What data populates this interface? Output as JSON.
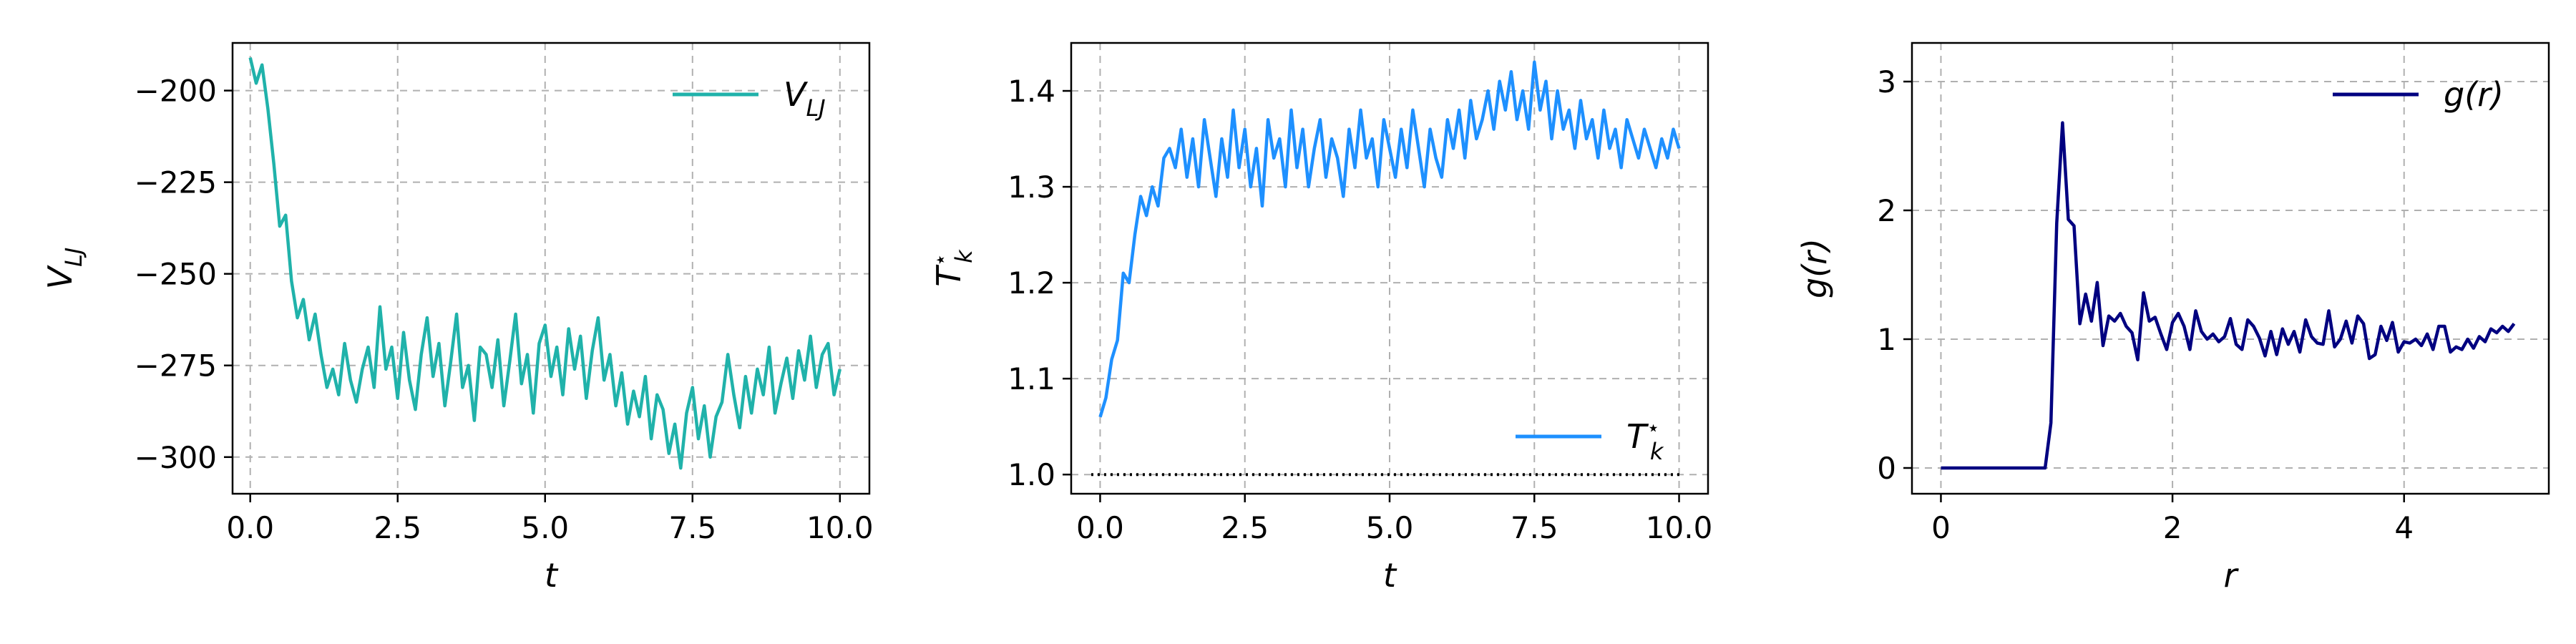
{
  "chart_data": [
    {
      "id": "vlj",
      "type": "line",
      "xlabel": "t",
      "ylabel": "V",
      "ylabel_sub": "LJ",
      "xlim": [
        -0.3,
        10.5
      ],
      "ylim": [
        -310,
        -187
      ],
      "xticks": [
        0,
        2.5,
        5,
        7.5,
        10
      ],
      "xtick_labels": [
        "0.0",
        "2.5",
        "5.0",
        "7.5",
        "10.0"
      ],
      "yticks": [
        -200,
        -225,
        -250,
        -275,
        -300
      ],
      "ytick_labels": [
        "−200",
        "−225",
        "−250",
        "−275",
        "−300"
      ],
      "grid": true,
      "legend": "upper right",
      "series": [
        {
          "name": "V",
          "name_sub": "LJ",
          "color": "#20b2aa",
          "x": [
            0,
            0.1,
            0.2,
            0.3,
            0.4,
            0.5,
            0.6,
            0.7,
            0.8,
            0.9,
            1.0,
            1.1,
            1.2,
            1.3,
            1.4,
            1.5,
            1.6,
            1.7,
            1.8,
            1.9,
            2.0,
            2.1,
            2.2,
            2.3,
            2.4,
            2.5,
            2.6,
            2.7,
            2.8,
            2.9,
            3.0,
            3.1,
            3.2,
            3.3,
            3.4,
            3.5,
            3.6,
            3.7,
            3.8,
            3.9,
            4.0,
            4.1,
            4.2,
            4.3,
            4.4,
            4.5,
            4.6,
            4.7,
            4.8,
            4.9,
            5.0,
            5.1,
            5.2,
            5.3,
            5.4,
            5.5,
            5.6,
            5.7,
            5.8,
            5.9,
            6.0,
            6.1,
            6.2,
            6.3,
            6.4,
            6.5,
            6.6,
            6.7,
            6.8,
            6.9,
            7.0,
            7.1,
            7.2,
            7.3,
            7.4,
            7.5,
            7.6,
            7.7,
            7.8,
            7.9,
            8.0,
            8.1,
            8.2,
            8.3,
            8.4,
            8.5,
            8.6,
            8.7,
            8.8,
            8.9,
            9.0,
            9.1,
            9.2,
            9.3,
            9.4,
            9.5,
            9.6,
            9.7,
            9.8,
            9.9,
            10.0
          ],
          "y": [
            -191,
            -198,
            -193,
            -205,
            -220,
            -237,
            -234,
            -252,
            -262,
            -257,
            -268,
            -261,
            -272,
            -281,
            -276,
            -283,
            -269,
            -279,
            -285,
            -276,
            -270,
            -281,
            -259,
            -276,
            -270,
            -284,
            -266,
            -279,
            -287,
            -272,
            -262,
            -278,
            -269,
            -286,
            -274,
            -261,
            -281,
            -275,
            -290,
            -270,
            -272,
            -281,
            -268,
            -286,
            -274,
            -261,
            -280,
            -272,
            -288,
            -269,
            -264,
            -278,
            -270,
            -283,
            -265,
            -276,
            -267,
            -284,
            -271,
            -262,
            -279,
            -272,
            -286,
            -277,
            -291,
            -282,
            -289,
            -278,
            -295,
            -283,
            -287,
            -299,
            -291,
            -303,
            -288,
            -281,
            -295,
            -286,
            -300,
            -289,
            -285,
            -272,
            -283,
            -292,
            -278,
            -288,
            -276,
            -283,
            -270,
            -288,
            -280,
            -273,
            -284,
            -271,
            -279,
            -267,
            -281,
            -272,
            -269,
            -283,
            -276
          ]
        }
      ]
    },
    {
      "id": "tk",
      "type": "line",
      "xlabel": "t",
      "ylabel": "T",
      "ylabel_sub": "k",
      "ylabel_sup": "⋆",
      "xlim": [
        -0.5,
        10.5
      ],
      "ylim": [
        0.98,
        1.45
      ],
      "xticks": [
        0,
        2.5,
        5,
        7.5,
        10
      ],
      "xtick_labels": [
        "0.0",
        "2.5",
        "5.0",
        "7.5",
        "10.0"
      ],
      "yticks": [
        1.0,
        1.1,
        1.2,
        1.3,
        1.4
      ],
      "ytick_labels": [
        "1.0",
        "1.1",
        "1.2",
        "1.3",
        "1.4"
      ],
      "grid": true,
      "legend": "lower right",
      "reference_line": {
        "y": 1.0,
        "x": [
          -0.5,
          10.5
        ],
        "color": "#000000",
        "style": "dotted"
      },
      "series": [
        {
          "name": "T",
          "name_sub": "k",
          "name_sup": "⋆",
          "color": "#1e90ff",
          "x": [
            0,
            0.1,
            0.2,
            0.3,
            0.4,
            0.5,
            0.6,
            0.7,
            0.8,
            0.9,
            1.0,
            1.1,
            1.2,
            1.3,
            1.4,
            1.5,
            1.6,
            1.7,
            1.8,
            1.9,
            2.0,
            2.1,
            2.2,
            2.3,
            2.4,
            2.5,
            2.6,
            2.7,
            2.8,
            2.9,
            3.0,
            3.1,
            3.2,
            3.3,
            3.4,
            3.5,
            3.6,
            3.7,
            3.8,
            3.9,
            4.0,
            4.1,
            4.2,
            4.3,
            4.4,
            4.5,
            4.6,
            4.7,
            4.8,
            4.9,
            5.0,
            5.1,
            5.2,
            5.3,
            5.4,
            5.5,
            5.6,
            5.7,
            5.8,
            5.9,
            6.0,
            6.1,
            6.2,
            6.3,
            6.4,
            6.5,
            6.6,
            6.7,
            6.8,
            6.9,
            7.0,
            7.1,
            7.2,
            7.3,
            7.4,
            7.5,
            7.6,
            7.7,
            7.8,
            7.9,
            8.0,
            8.1,
            8.2,
            8.3,
            8.4,
            8.5,
            8.6,
            8.7,
            8.8,
            8.9,
            9.0,
            9.1,
            9.2,
            9.3,
            9.4,
            9.5,
            9.6,
            9.7,
            9.8,
            9.9,
            10.0
          ],
          "y": [
            1.06,
            1.08,
            1.12,
            1.14,
            1.21,
            1.2,
            1.25,
            1.29,
            1.27,
            1.3,
            1.28,
            1.33,
            1.34,
            1.32,
            1.36,
            1.31,
            1.35,
            1.3,
            1.37,
            1.33,
            1.29,
            1.35,
            1.31,
            1.38,
            1.32,
            1.36,
            1.3,
            1.34,
            1.28,
            1.37,
            1.33,
            1.35,
            1.3,
            1.38,
            1.32,
            1.36,
            1.3,
            1.34,
            1.37,
            1.31,
            1.35,
            1.33,
            1.29,
            1.36,
            1.32,
            1.38,
            1.33,
            1.35,
            1.3,
            1.37,
            1.34,
            1.31,
            1.36,
            1.32,
            1.38,
            1.34,
            1.3,
            1.36,
            1.33,
            1.31,
            1.37,
            1.34,
            1.38,
            1.33,
            1.39,
            1.35,
            1.37,
            1.4,
            1.36,
            1.41,
            1.38,
            1.42,
            1.37,
            1.4,
            1.36,
            1.43,
            1.38,
            1.41,
            1.35,
            1.4,
            1.36,
            1.38,
            1.34,
            1.39,
            1.35,
            1.37,
            1.33,
            1.38,
            1.34,
            1.36,
            1.32,
            1.37,
            1.35,
            1.33,
            1.36,
            1.34,
            1.32,
            1.35,
            1.33,
            1.36,
            1.34
          ]
        }
      ]
    },
    {
      "id": "gr",
      "type": "line",
      "xlabel": "r",
      "ylabel": "g(r)",
      "xlim": [
        -0.25,
        5.25
      ],
      "ylim": [
        -0.2,
        3.3
      ],
      "xticks": [
        0,
        2,
        4
      ],
      "xtick_labels": [
        "0",
        "2",
        "4"
      ],
      "yticks": [
        0,
        1,
        2,
        3
      ],
      "ytick_labels": [
        "0",
        "1",
        "2",
        "3"
      ],
      "grid": true,
      "legend": "upper right",
      "series": [
        {
          "name": "g(r)",
          "color": "#000080",
          "x": [
            0,
            0.1,
            0.2,
            0.3,
            0.4,
            0.5,
            0.6,
            0.7,
            0.8,
            0.9,
            0.95,
            1.0,
            1.05,
            1.1,
            1.15,
            1.2,
            1.25,
            1.3,
            1.35,
            1.4,
            1.45,
            1.5,
            1.55,
            1.6,
            1.65,
            1.7,
            1.75,
            1.8,
            1.85,
            1.9,
            1.95,
            2.0,
            2.05,
            2.1,
            2.15,
            2.2,
            2.25,
            2.3,
            2.35,
            2.4,
            2.45,
            2.5,
            2.55,
            2.6,
            2.65,
            2.7,
            2.75,
            2.8,
            2.85,
            2.9,
            2.95,
            3.0,
            3.05,
            3.1,
            3.15,
            3.2,
            3.25,
            3.3,
            3.35,
            3.4,
            3.45,
            3.5,
            3.55,
            3.6,
            3.65,
            3.7,
            3.75,
            3.8,
            3.85,
            3.9,
            3.95,
            4.0,
            4.05,
            4.1,
            4.15,
            4.2,
            4.25,
            4.3,
            4.35,
            4.4,
            4.45,
            4.5,
            4.55,
            4.6,
            4.65,
            4.7,
            4.75,
            4.8,
            4.85,
            4.9,
            4.95
          ],
          "y": [
            0,
            0,
            0,
            0,
            0,
            0,
            0,
            0,
            0,
            0,
            0.35,
            1.9,
            2.68,
            1.93,
            1.88,
            1.12,
            1.35,
            1.14,
            1.44,
            0.95,
            1.18,
            1.14,
            1.2,
            1.1,
            1.05,
            0.84,
            1.36,
            1.14,
            1.17,
            1.04,
            0.92,
            1.13,
            1.2,
            1.1,
            0.92,
            1.22,
            1.06,
            1.0,
            1.04,
            0.98,
            1.02,
            1.16,
            0.96,
            0.92,
            1.15,
            1.1,
            1.01,
            0.87,
            1.06,
            0.88,
            1.08,
            0.96,
            1.06,
            0.9,
            1.15,
            1.02,
            0.97,
            0.96,
            1.22,
            0.94,
            1.0,
            1.14,
            0.97,
            1.18,
            1.12,
            0.85,
            0.88,
            1.1,
            0.99,
            1.13,
            0.9,
            0.98,
            0.97,
            1.0,
            0.95,
            1.04,
            0.92,
            1.1,
            1.1,
            0.9,
            0.94,
            0.92,
            1.0,
            0.93,
            1.02,
            0.98,
            1.08,
            1.05,
            1.1,
            1.06,
            1.12
          ]
        }
      ]
    }
  ]
}
